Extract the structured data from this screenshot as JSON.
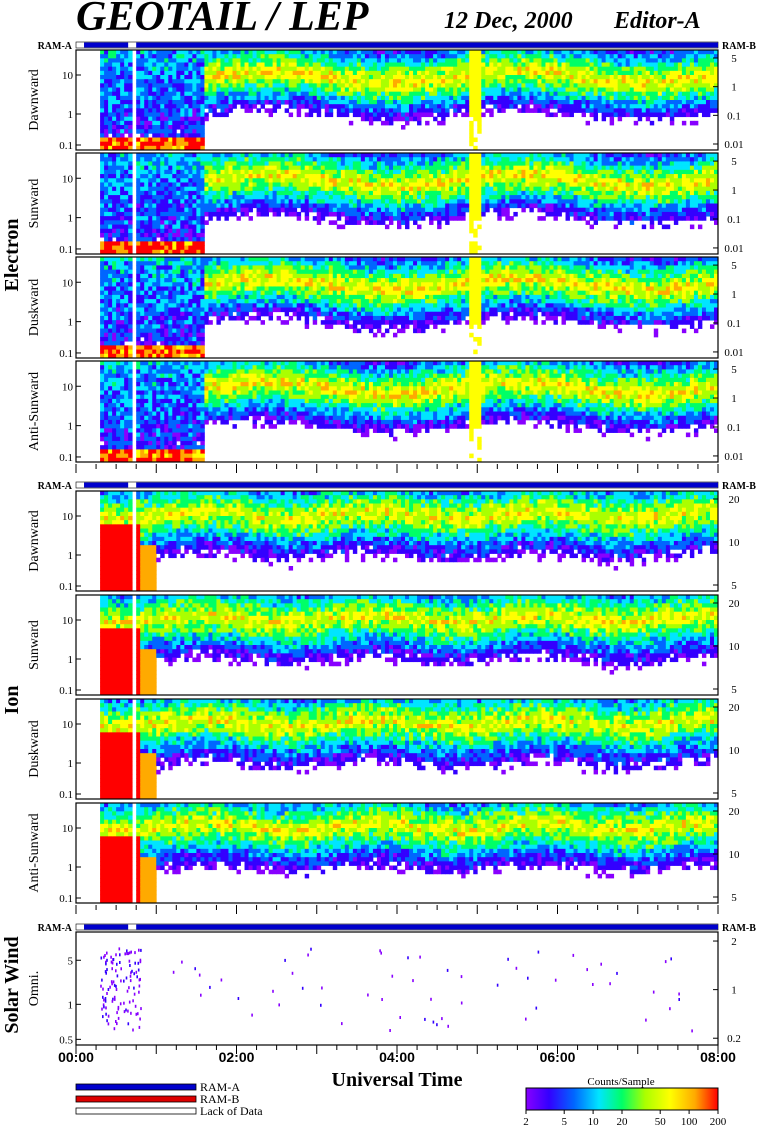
{
  "header": {
    "instrument": "GEOTAIL / LEP",
    "date": "12 Dec, 2000",
    "editor": "Editor-A"
  },
  "colors": {
    "ram_a": "#0000cc",
    "ram_b": "#dd0000",
    "colormap": [
      "#8800ff",
      "#3300ff",
      "#0066ff",
      "#00e5ff",
      "#00ff66",
      "#aaff00",
      "#ffff00",
      "#ffaa00",
      "#ff0000"
    ]
  },
  "chart_data": {
    "type": "heatmap",
    "xlabel": "Universal Time",
    "x_ticks": [
      "00:00",
      "02:00",
      "04:00",
      "06:00",
      "08:00"
    ],
    "x_range_hours": [
      0,
      8
    ],
    "groups": [
      {
        "name": "Electron",
        "panels": [
          {
            "name": "Dawnward",
            "left_ticks": [
              "10",
              "1",
              "0.1"
            ],
            "right_ticks": [
              "5",
              "1",
              "0.1",
              "0.01"
            ]
          },
          {
            "name": "Sunward",
            "left_ticks": [
              "10",
              "1",
              "0.1"
            ],
            "right_ticks": [
              "5",
              "1",
              "0.1",
              "0.01"
            ]
          },
          {
            "name": "Duskward",
            "left_ticks": [
              "10",
              "1",
              "0.1"
            ],
            "right_ticks": [
              "5",
              "1",
              "0.1",
              "0.01"
            ]
          },
          {
            "name": "Anti-Sunward",
            "left_ticks": [
              "10",
              "1",
              "0.1"
            ],
            "right_ticks": [
              "5",
              "1",
              "0.1",
              "0.01"
            ]
          }
        ],
        "ram_left": "RAM-A",
        "ram_right": "RAM-B"
      },
      {
        "name": "Ion",
        "panels": [
          {
            "name": "Dawnward",
            "left_ticks": [
              "10",
              "1",
              "0.1"
            ],
            "right_ticks": [
              "20",
              "10",
              "5"
            ]
          },
          {
            "name": "Sunward",
            "left_ticks": [
              "10",
              "1",
              "0.1"
            ],
            "right_ticks": [
              "20",
              "10",
              "5"
            ]
          },
          {
            "name": "Duskward",
            "left_ticks": [
              "10",
              "1",
              "0.1"
            ],
            "right_ticks": [
              "20",
              "10",
              "5"
            ]
          },
          {
            "name": "Anti-Sunward",
            "left_ticks": [
              "10",
              "1",
              "0.1"
            ],
            "right_ticks": [
              "20",
              "10",
              "5"
            ]
          }
        ],
        "ram_left": "RAM-A",
        "ram_right": "RAM-B"
      },
      {
        "name": "Solar Wind",
        "panels": [
          {
            "name": "Omni.",
            "left_ticks": [
              "5",
              "1",
              "0.5"
            ],
            "right_ticks": [
              "2",
              "1",
              "0.2"
            ]
          }
        ],
        "ram_left": "RAM-A",
        "ram_right": "RAM-B"
      }
    ],
    "legend": {
      "entries": [
        "RAM-A",
        "RAM-B",
        "Lack of Data"
      ],
      "colorbar_title": "Counts/Sample",
      "colorbar_ticks": [
        "2",
        "5",
        "10",
        "20",
        "50",
        "100",
        "200"
      ]
    }
  }
}
